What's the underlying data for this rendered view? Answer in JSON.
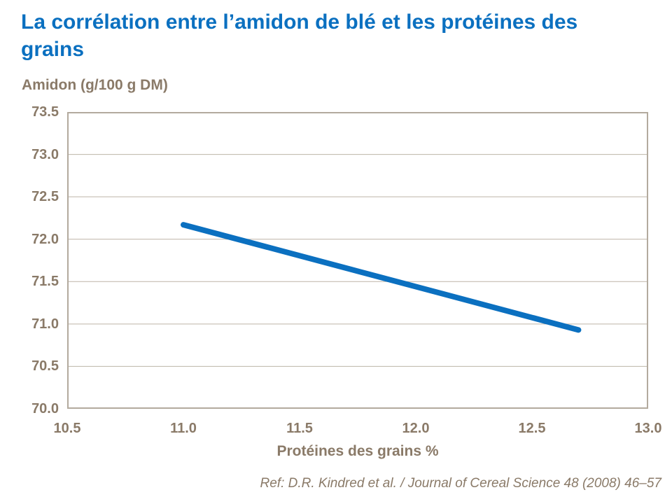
{
  "slide": {
    "reference": "Ref: D.R. Kindred et al. / Journal of Cereal Science 48 (2008) 46–57"
  },
  "chart_data": {
    "type": "line",
    "title": "La corrélation entre l’amidon de blé et les protéines des grains",
    "xlabel": "Protéines des grains %",
    "ylabel": "Amidon (g/100 g DM)",
    "xlim": [
      10.5,
      13.0
    ],
    "ylim": [
      70.0,
      73.5
    ],
    "xticks": [
      "10.5",
      "11.0",
      "11.5",
      "12.0",
      "12.5",
      "13.0"
    ],
    "yticks": [
      "70.0",
      "70.5",
      "71.0",
      "71.5",
      "72.0",
      "72.5",
      "73.0",
      "73.5"
    ],
    "grid": "horizontal-only",
    "legend": "none",
    "series": [
      {
        "x": [
          11.0,
          12.7
        ],
        "y": [
          72.17,
          70.93
        ],
        "color": "#0b70c0",
        "stroke_width": 8
      }
    ]
  },
  "colors": {
    "title_text": "#0b70c0",
    "axis_text": "#8a7a68",
    "plot_frame": "#b3aa9e",
    "gridline": "#bdb4a7",
    "background": "#ffffff"
  }
}
